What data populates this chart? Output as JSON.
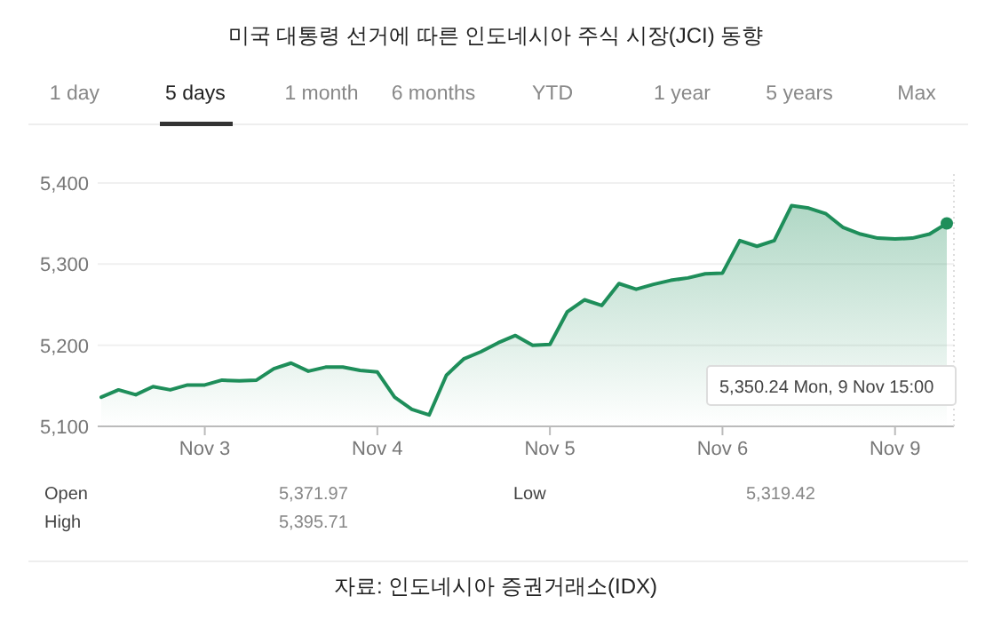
{
  "chart_data": {
    "type": "area",
    "title": "미국 대통령 선거에 따른 인도네시아 주식 시장(JCI) 동향",
    "categories": [
      null,
      null,
      null,
      null,
      null,
      null,
      "Nov 3",
      null,
      null,
      null,
      null,
      null,
      null,
      null,
      null,
      null,
      "Nov 4",
      null,
      null,
      null,
      null,
      null,
      null,
      null,
      null,
      null,
      "Nov 5",
      null,
      null,
      null,
      null,
      null,
      null,
      null,
      null,
      null,
      "Nov 6",
      null,
      null,
      null,
      null,
      null,
      null,
      null,
      null,
      null,
      "Nov 9",
      null,
      null,
      null
    ],
    "series": [
      {
        "color": "#1e8e5a",
        "values": [
          5136,
          5145,
          5139,
          5149,
          5145,
          5151,
          5151,
          5157,
          5156,
          5157,
          5171,
          5178,
          5168,
          5173,
          5173,
          5169,
          5167,
          5136,
          5121,
          5114,
          5163,
          5183,
          5192,
          5203,
          5212,
          5200,
          5201,
          5241,
          5256,
          5249,
          5276,
          5269,
          5275,
          5280,
          5283,
          5288,
          5289,
          5329,
          5322,
          5329,
          5372,
          5369,
          5362,
          5345,
          5337,
          5332,
          5331,
          5332,
          5337,
          5350.24
        ]
      }
    ],
    "ylim": [
      5100,
      5400
    ],
    "yticks": [
      {
        "value": 5100,
        "label": "5,100"
      },
      {
        "value": 5200,
        "label": "5,200"
      },
      {
        "value": 5300,
        "label": "5,300"
      },
      {
        "value": 5400,
        "label": "5,400"
      }
    ],
    "grid": "y",
    "annotations": [
      "1 day",
      "5 days",
      "1 month",
      "6 months",
      "YTD",
      "1 year",
      "5 years",
      "Max",
      "Open",
      "5,371.97",
      "High",
      "5,395.71",
      "Low",
      "5,319.42",
      "자료: 인도네시아 증권거래소(IDX)",
      "5,350.24  Mon, 9 Nov 15:00"
    ]
  }
}
